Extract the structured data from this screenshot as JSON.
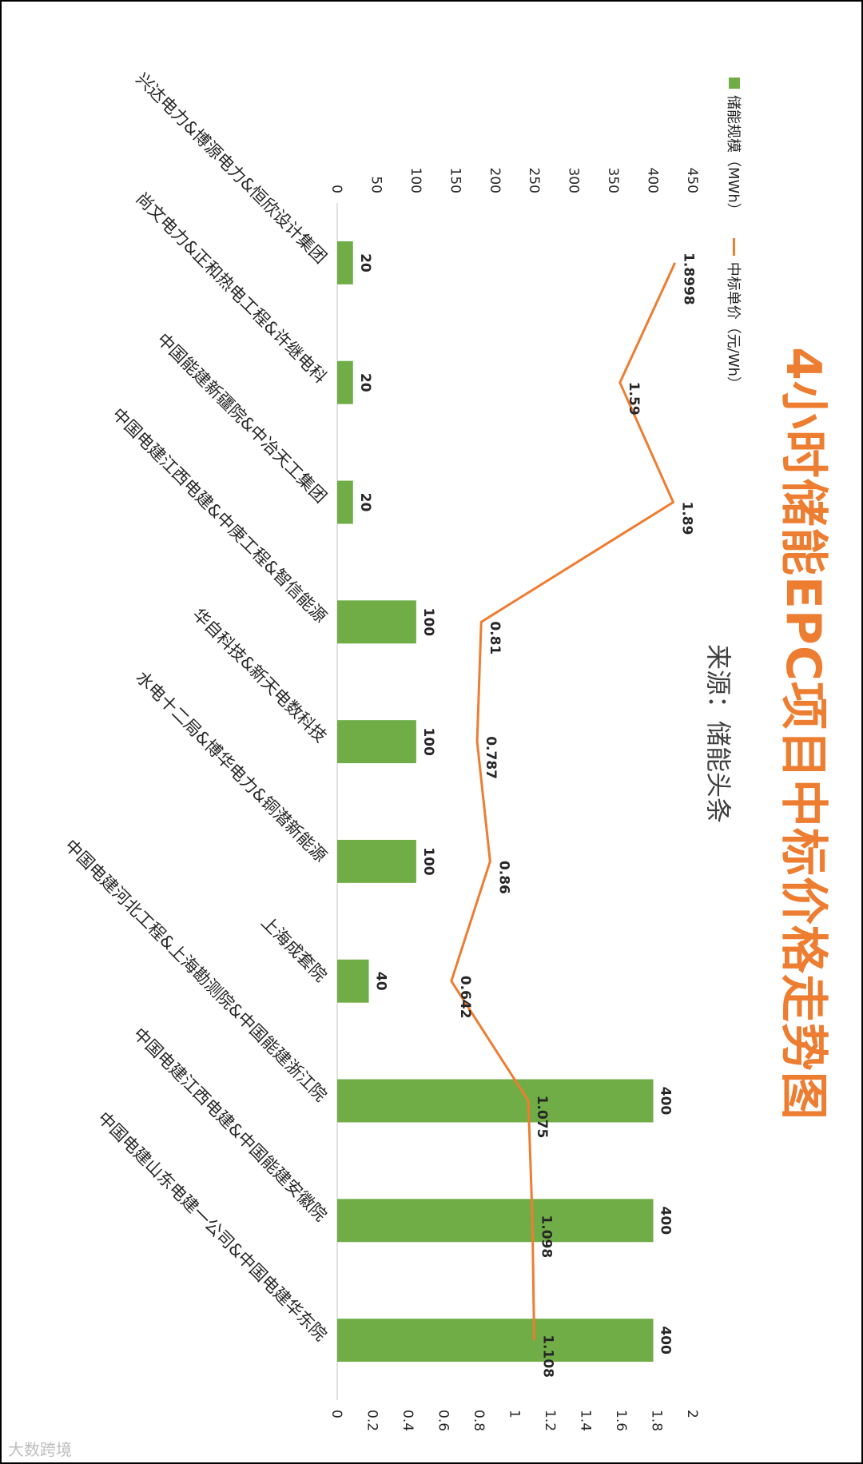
{
  "chart_data": {
    "type": "bar",
    "title": "4小时储能EPC项目中标价格走势图",
    "subtitle": "来源：储能头条",
    "categories": [
      "兴达电力&博源电力&恒欣设计集团",
      "尚文电力&正和热电工程&许继电科",
      "中国能建新疆院&中冶天工集团",
      "中国电建江西电建&中庚工程&智信能源",
      "华自科技&新天电数科技",
      "水电十二局&博华电力&铜潜新能源",
      "上海成套院",
      "中国电建河北工程&上海勘测院&中国能建浙江院",
      "中国电建江西电建&中国能建安徽院",
      "中国电建山东电建一公司&中国电建华东院"
    ],
    "series": [
      {
        "name": "储能规模（MWh）",
        "type": "bar",
        "axis": "left",
        "values": [
          20,
          20,
          20,
          100,
          100,
          100,
          40,
          400,
          400,
          400
        ],
        "labels": [
          "20",
          "20",
          "20",
          "100",
          "100",
          "100",
          "40",
          "400",
          "400",
          "400"
        ]
      },
      {
        "name": "中标单价（元/Wh）",
        "type": "line",
        "axis": "right",
        "values": [
          1.8998,
          1.59,
          1.89,
          0.81,
          0.787,
          0.86,
          0.642,
          1.075,
          1.098,
          1.108
        ],
        "labels": [
          "1.8998",
          "1.59",
          "1.89",
          "0.81",
          "0.787",
          "0.86",
          "0.642",
          "1.075",
          "1.098",
          "1.108"
        ]
      }
    ],
    "left_axis": {
      "ylim": [
        0,
        450
      ],
      "ticks": [
        "0",
        "50",
        "100",
        "150",
        "200",
        "250",
        "300",
        "350",
        "400",
        "450"
      ]
    },
    "right_axis": {
      "ylim": [
        0,
        2
      ],
      "ticks": [
        "0",
        "0.2",
        "0.4",
        "0.6",
        "0.8",
        "1",
        "1.2",
        "1.4",
        "1.6",
        "1.8",
        "2"
      ]
    },
    "legend_position": "top-left",
    "grid": false,
    "colors": {
      "bar": "#70AD47",
      "line": "#ED7D31",
      "title": "#ED7D31"
    }
  },
  "watermark": "大数跨境"
}
